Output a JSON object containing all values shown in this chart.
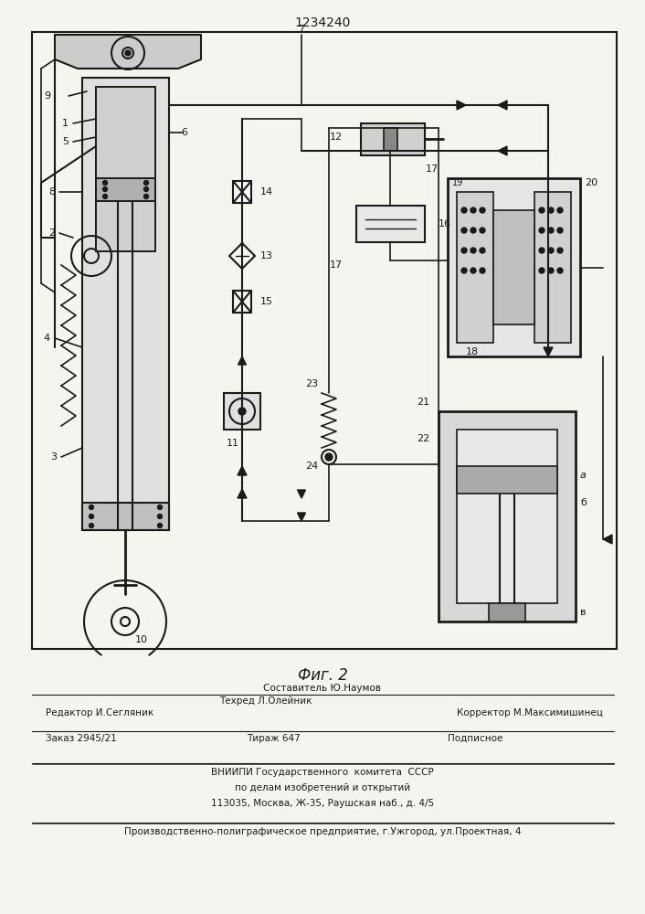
{
  "patent_number": "1234240",
  "fig_label": "Фиг. 2",
  "bg_color": "#f5f5f0",
  "line_color": "#1a1a1a",
  "header_line1": "Составитель Ю.Наумов",
  "header_line2_left": "Редактор И.Сегляник",
  "header_line2_mid": "Техред Л.Олейник",
  "header_line2_right": "Корректор М.Максимишинец",
  "footer_line1_left": "Заказ 2945/21",
  "footer_line1_mid": "Тираж 647",
  "footer_line1_right": "Подписное",
  "footer_line2": "ВНИИПИ Государственного  комитета  СССР",
  "footer_line3": "по делам изобретений и открытий",
  "footer_line4": "113035, Москва, Ж-35, Раушская наб., д. 4/5",
  "footer_bottom": "Производственно-полиграфическое предприятие, г.Ужгород, ул.Проектная, 4"
}
